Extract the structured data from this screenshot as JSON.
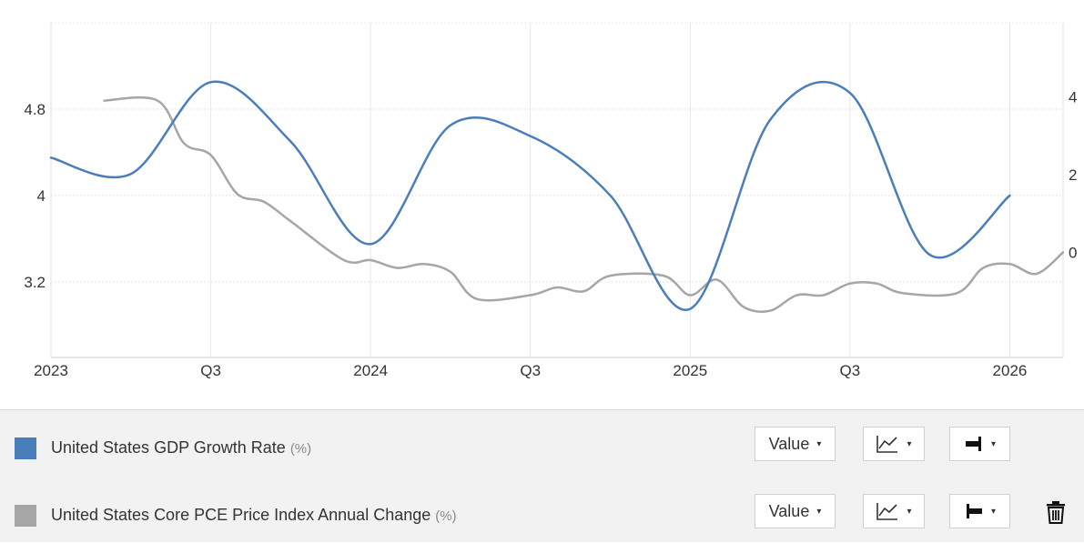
{
  "chart_data": {
    "type": "line",
    "x_range": [
      "2023-01",
      "2026-03"
    ],
    "x_tick_labels": [
      "2023",
      "Q3",
      "2024",
      "Q3",
      "2025",
      "Q3",
      "2026"
    ],
    "y_left": {
      "range": [
        2.5,
        5.6
      ],
      "ticks": [
        "3.2",
        "4",
        "4.8"
      ]
    },
    "y_right": {
      "range": [
        -2.7,
        5.9
      ],
      "ticks": [
        "0",
        "2",
        "4"
      ]
    },
    "grid": true,
    "series": [
      {
        "name": "United States GDP Growth Rate",
        "unit": "(%)",
        "axis": "left",
        "color": "#4a7ebb",
        "points": [
          [
            "2023-01",
            4.35
          ],
          [
            "2023-04",
            4.2
          ],
          [
            "2023-07",
            5.05
          ],
          [
            "2023-10",
            4.5
          ],
          [
            "2024-01",
            3.55
          ],
          [
            "2024-04",
            4.65
          ],
          [
            "2024-07",
            4.55
          ],
          [
            "2024-10",
            4.0
          ],
          [
            "2025-01",
            2.95
          ],
          [
            "2025-04",
            4.7
          ],
          [
            "2025-07",
            4.95
          ],
          [
            "2025-10",
            3.45
          ],
          [
            "2026-01",
            4.0
          ]
        ]
      },
      {
        "name": "United States Core PCE Price Index Annual Change",
        "unit": "(%)",
        "axis": "right",
        "color": "#a6a6a6",
        "points": [
          [
            "2023-03",
            3.9
          ],
          [
            "2023-05",
            3.9
          ],
          [
            "2023-06",
            2.8
          ],
          [
            "2023-07",
            2.5
          ],
          [
            "2023-08",
            1.5
          ],
          [
            "2023-09",
            1.3
          ],
          [
            "2023-10",
            0.8
          ],
          [
            "2023-12",
            -0.2
          ],
          [
            "2024-01",
            -0.2
          ],
          [
            "2024-02",
            -0.4
          ],
          [
            "2024-03",
            -0.3
          ],
          [
            "2024-04",
            -0.5
          ],
          [
            "2024-05",
            -1.2
          ],
          [
            "2024-07",
            -1.1
          ],
          [
            "2024-08",
            -0.9
          ],
          [
            "2024-09",
            -1.0
          ],
          [
            "2024-10",
            -0.6
          ],
          [
            "2024-12",
            -0.6
          ],
          [
            "2025-01",
            -1.1
          ],
          [
            "2025-02",
            -0.7
          ],
          [
            "2025-03",
            -1.4
          ],
          [
            "2025-04",
            -1.5
          ],
          [
            "2025-05",
            -1.1
          ],
          [
            "2025-06",
            -1.1
          ],
          [
            "2025-07",
            -0.8
          ],
          [
            "2025-08",
            -0.8
          ],
          [
            "2025-09",
            -1.05
          ],
          [
            "2025-11",
            -1.05
          ],
          [
            "2025-12",
            -0.4
          ],
          [
            "2026-01",
            -0.3
          ],
          [
            "2026-02",
            -0.55
          ],
          [
            "2026-03",
            0.0
          ]
        ]
      }
    ]
  },
  "legend": [
    {
      "label": "United States GDP Growth Rate",
      "unit": "(%)",
      "color": "#4a7ebb",
      "value_dd": "Value",
      "caret": "▾"
    },
    {
      "label": "United States Core PCE Price Index Annual Change",
      "unit": "(%)",
      "color": "#a6a6a6",
      "value_dd": "Value",
      "caret": "▾"
    }
  ],
  "icons": {
    "chart_type": "line-chart-icon",
    "axis_right": "axis-right-icon",
    "axis_left": "axis-left-icon",
    "delete": "trash-icon"
  }
}
